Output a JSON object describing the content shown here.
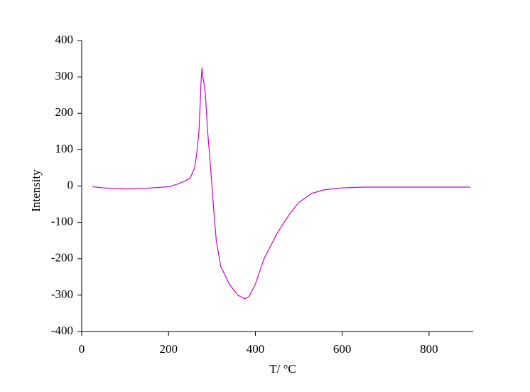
{
  "chart_data": {
    "type": "line",
    "x_label": "T/ °C",
    "y_label": "Intensity",
    "xlim": [
      0,
      900
    ],
    "ylim": [
      -400,
      400
    ],
    "xticks": [
      0,
      200,
      400,
      600,
      800
    ],
    "yticks": [
      -400,
      -300,
      -200,
      -100,
      0,
      100,
      200,
      300,
      400
    ],
    "series": [
      {
        "color": "#cc00cc",
        "x": [
          25,
          50,
          100,
          150,
          200,
          220,
          240,
          250,
          260,
          265,
          270,
          273,
          275,
          277,
          279,
          282,
          285,
          290,
          295,
          300,
          305,
          310,
          320,
          340,
          360,
          375,
          385,
          400,
          420,
          450,
          480,
          500,
          530,
          560,
          600,
          650,
          700,
          800,
          895
        ],
        "values": [
          -2,
          -5,
          -8,
          -6,
          -2,
          5,
          15,
          22,
          50,
          90,
          150,
          230,
          290,
          325,
          300,
          280,
          250,
          150,
          80,
          0,
          -80,
          -150,
          -220,
          -270,
          -300,
          -310,
          -305,
          -270,
          -200,
          -130,
          -75,
          -45,
          -20,
          -10,
          -5,
          -3,
          -3,
          -3,
          -3
        ]
      }
    ]
  }
}
